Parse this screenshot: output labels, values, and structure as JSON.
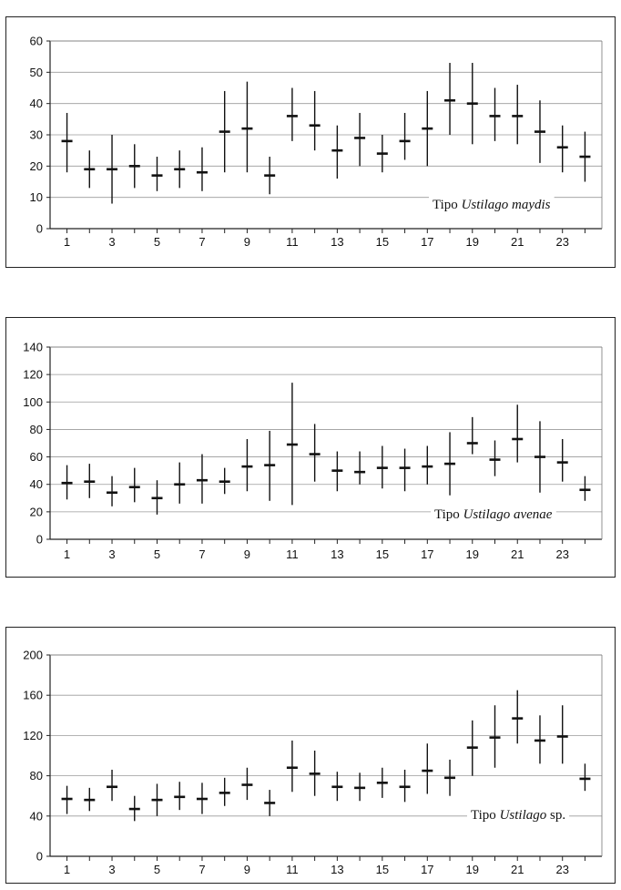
{
  "chart_data": [
    {
      "type": "errorbar",
      "label_prefix": "Tipo ",
      "label_species": "Ustilago maydis",
      "label_suffix": "",
      "ylim": [
        0,
        60
      ],
      "yticks": [
        0,
        10,
        20,
        30,
        40,
        50,
        60
      ],
      "xticks": [
        1,
        3,
        5,
        7,
        9,
        11,
        13,
        15,
        17,
        19,
        21,
        23
      ],
      "x": [
        1,
        2,
        3,
        4,
        5,
        6,
        7,
        8,
        9,
        10,
        11,
        12,
        13,
        14,
        15,
        16,
        17,
        18,
        19,
        20,
        21,
        22,
        23,
        24
      ],
      "mean": [
        28,
        19,
        19,
        20,
        17,
        19,
        18,
        31,
        32,
        17,
        36,
        33,
        25,
        29,
        24,
        28,
        32,
        41,
        40,
        36,
        36,
        31,
        26,
        23
      ],
      "low": [
        18,
        13,
        8,
        13,
        12,
        13,
        12,
        18,
        18,
        11,
        28,
        25,
        16,
        20,
        18,
        22,
        20,
        30,
        27,
        28,
        27,
        21,
        18,
        15
      ],
      "high": [
        37,
        25,
        30,
        27,
        23,
        25,
        26,
        44,
        47,
        23,
        45,
        44,
        33,
        37,
        30,
        37,
        44,
        53,
        53,
        45,
        46,
        41,
        33,
        31
      ]
    },
    {
      "type": "errorbar",
      "label_prefix": "Tipo ",
      "label_species": "Ustilago avenae",
      "label_suffix": "",
      "ylim": [
        0,
        140
      ],
      "yticks": [
        0,
        20,
        40,
        60,
        80,
        100,
        120,
        140
      ],
      "xticks": [
        1,
        3,
        5,
        7,
        9,
        11,
        13,
        15,
        17,
        19,
        21,
        23
      ],
      "x": [
        1,
        2,
        3,
        4,
        5,
        6,
        7,
        8,
        9,
        10,
        11,
        12,
        13,
        14,
        15,
        16,
        17,
        18,
        19,
        20,
        21,
        22,
        23,
        24
      ],
      "mean": [
        41,
        42,
        34,
        38,
        30,
        40,
        43,
        42,
        53,
        54,
        69,
        62,
        50,
        49,
        52,
        52,
        53,
        55,
        70,
        58,
        73,
        60,
        56,
        36
      ],
      "low": [
        29,
        30,
        24,
        27,
        18,
        26,
        26,
        33,
        35,
        28,
        25,
        42,
        35,
        40,
        37,
        35,
        40,
        32,
        62,
        46,
        56,
        34,
        42,
        28
      ],
      "high": [
        54,
        55,
        46,
        52,
        43,
        56,
        62,
        52,
        73,
        79,
        114,
        84,
        64,
        64,
        68,
        66,
        68,
        78,
        89,
        72,
        98,
        86,
        73,
        46
      ]
    },
    {
      "type": "errorbar",
      "label_prefix": "Tipo ",
      "label_species": "Ustilago",
      "label_suffix": " sp.",
      "ylim": [
        0,
        200
      ],
      "yticks": [
        0,
        40,
        80,
        120,
        160,
        200
      ],
      "xticks": [
        1,
        3,
        5,
        7,
        9,
        11,
        13,
        15,
        17,
        19,
        21,
        23
      ],
      "x": [
        1,
        2,
        3,
        4,
        5,
        6,
        7,
        8,
        9,
        10,
        11,
        12,
        13,
        14,
        15,
        16,
        17,
        18,
        19,
        20,
        21,
        22,
        23,
        24
      ],
      "mean": [
        57,
        56,
        69,
        47,
        56,
        59,
        57,
        63,
        71,
        53,
        88,
        82,
        69,
        68,
        73,
        69,
        85,
        78,
        108,
        118,
        137,
        115,
        119,
        77
      ],
      "low": [
        42,
        45,
        55,
        35,
        40,
        46,
        42,
        50,
        56,
        40,
        64,
        60,
        55,
        55,
        58,
        54,
        62,
        60,
        80,
        88,
        112,
        92,
        92,
        65
      ],
      "high": [
        70,
        68,
        86,
        60,
        72,
        74,
        73,
        78,
        88,
        66,
        115,
        105,
        84,
        83,
        88,
        86,
        112,
        96,
        135,
        150,
        165,
        140,
        150,
        92
      ]
    }
  ]
}
